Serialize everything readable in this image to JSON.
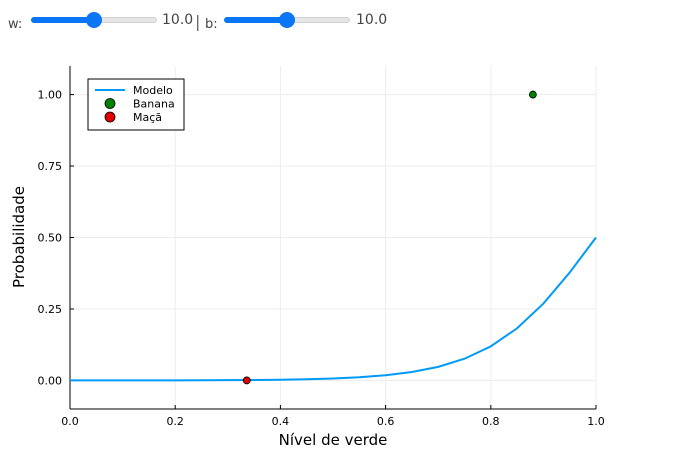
{
  "controls": {
    "w": {
      "label": "w:",
      "value_text": "10.0",
      "value": 10.0,
      "min": 0,
      "max": 20
    },
    "separator": "|",
    "b": {
      "label": "b:",
      "value_text": "10.0",
      "value": 10.0,
      "min": 0,
      "max": 20
    },
    "slider_color": "#0a76f5"
  },
  "chart_data": {
    "type": "line",
    "title": "",
    "xlabel": "Nível de verde",
    "ylabel": "Probabilidade",
    "xlim": [
      0,
      1
    ],
    "ylim": [
      -0.1,
      1.1
    ],
    "xticks": [
      0,
      0.2,
      0.4,
      0.6,
      0.8,
      1.0
    ],
    "xtick_labels": [
      "0.0",
      "0.2",
      "0.4",
      "0.6",
      "0.8",
      "1.0"
    ],
    "yticks": [
      0,
      0.25,
      0.5,
      0.75,
      1.0
    ],
    "ytick_labels": [
      "0.00",
      "0.25",
      "0.50",
      "0.75",
      "1.00"
    ],
    "grid": true,
    "legend_position": "top-left",
    "series": [
      {
        "name": "Modelo",
        "kind": "line",
        "color": "#009af9",
        "x": [
          0.0,
          0.05,
          0.1,
          0.15,
          0.2,
          0.25,
          0.3,
          0.35,
          0.4,
          0.45,
          0.5,
          0.55,
          0.6,
          0.65,
          0.7,
          0.75,
          0.8,
          0.85,
          0.9,
          0.95,
          1.0
        ],
        "y": [
          0.0,
          0.0001,
          0.0001,
          0.0002,
          0.0003,
          0.0006,
          0.0009,
          0.0015,
          0.0025,
          0.0041,
          0.0067,
          0.011,
          0.018,
          0.0293,
          0.0474,
          0.0759,
          0.1192,
          0.1824,
          0.2689,
          0.3775,
          0.5
        ]
      },
      {
        "name": "Banana",
        "kind": "scatter",
        "color": "#008000",
        "points": [
          {
            "x": 0.88,
            "y": 1.0
          }
        ]
      },
      {
        "name": "Maçã",
        "kind": "scatter",
        "color": "#e10000",
        "points": [
          {
            "x": 0.336,
            "y": 0.0
          }
        ]
      }
    ]
  }
}
